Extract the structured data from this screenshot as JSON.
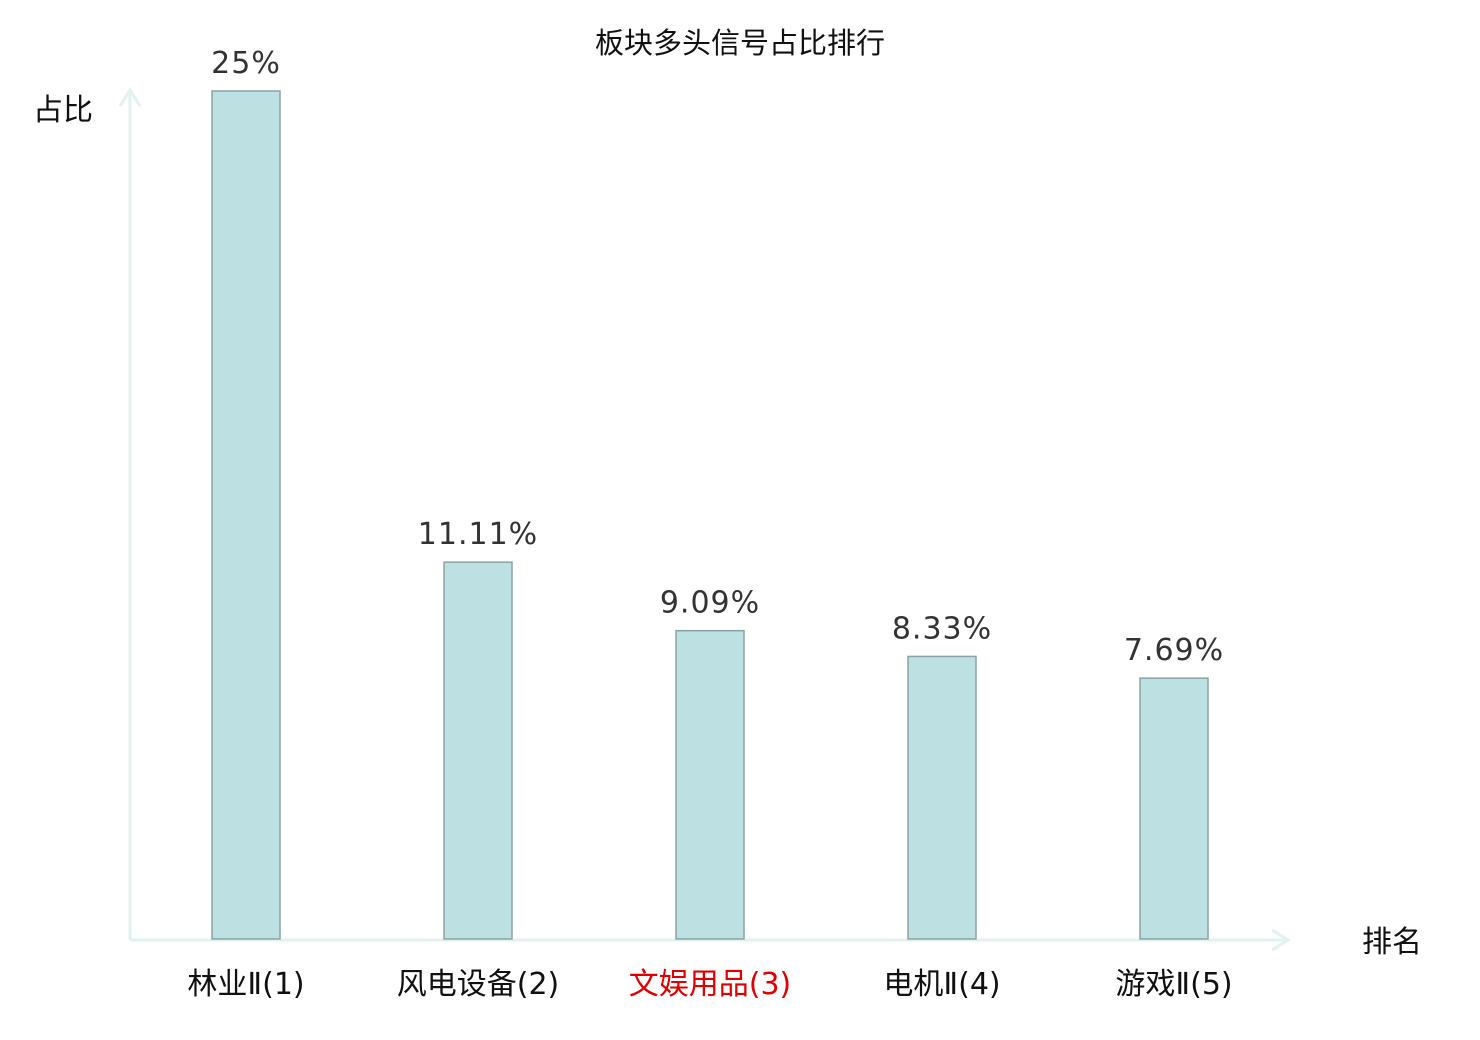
{
  "chart_data": {
    "type": "bar",
    "title": "板块多头信号占比排行",
    "xlabel": "排名",
    "ylabel": "占比",
    "ylim": [
      0,
      25
    ],
    "grid": false,
    "legend": "none",
    "categories": [
      "林业Ⅱ(1)",
      "风电设备(2)",
      "文娱用品(3)",
      "电机Ⅱ(4)",
      "游戏Ⅱ(5)"
    ],
    "values": [
      25,
      11.11,
      9.09,
      8.33,
      7.69
    ],
    "value_labels": [
      "25%",
      "11.11%",
      "9.09%",
      "8.33%",
      "7.69%"
    ],
    "highlight_index": 2,
    "colors": {
      "bar_fill": "#bde0e2",
      "bar_stroke": "#8ca3a5",
      "axis": "#e0f3f1",
      "label": "#111111",
      "highlight_label": "#e00000",
      "value_label": "#333333"
    }
  }
}
